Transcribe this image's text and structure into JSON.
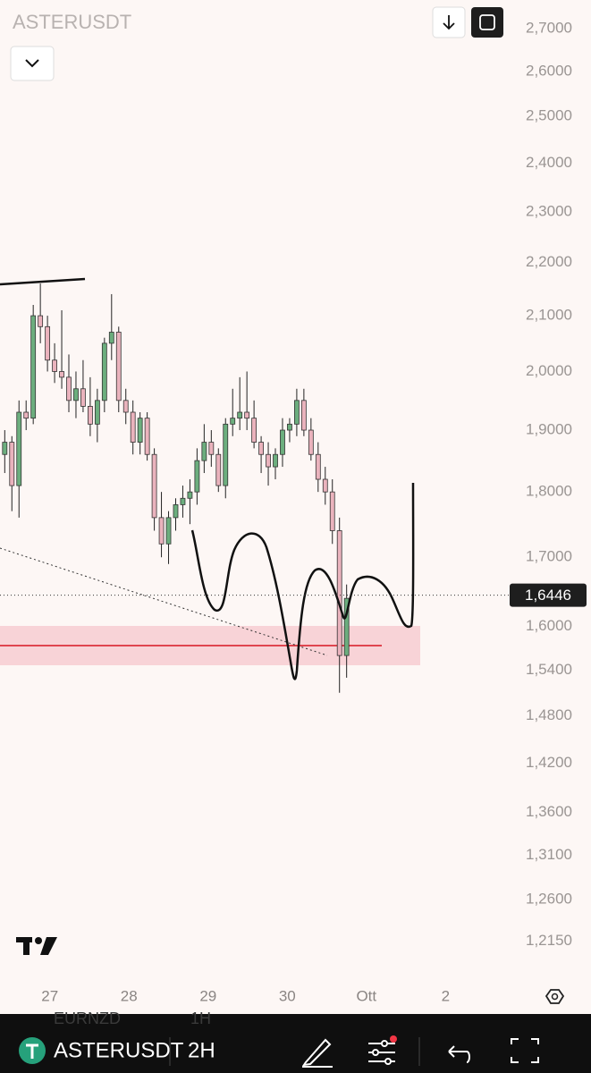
{
  "header": {
    "symbol": "ASTERUSDT"
  },
  "chart_data": {
    "type": "candlestick",
    "log_scale": true,
    "up_color": "#6cae7e",
    "down_color": "#eab3bd",
    "x": [
      26.43,
      26.52,
      26.61,
      26.7,
      26.79,
      26.88,
      26.97,
      27.06,
      27.15,
      27.24,
      27.33,
      27.42,
      27.51,
      27.6,
      27.69,
      27.78,
      27.87,
      27.96,
      28.05,
      28.14,
      28.23,
      28.32,
      28.41,
      28.5,
      28.59,
      28.68,
      28.77,
      28.86,
      28.95,
      29.04,
      29.13,
      29.22,
      29.31,
      29.4,
      29.49,
      29.58,
      29.67,
      29.76,
      29.85,
      29.94,
      30.03,
      30.12,
      30.21,
      30.3,
      30.39,
      30.48,
      30.57,
      30.66,
      30.75
    ],
    "open": [
      1.86,
      1.88,
      1.81,
      1.93,
      1.92,
      2.1,
      2.08,
      2.02,
      2.0,
      1.99,
      1.95,
      1.97,
      1.94,
      1.91,
      1.95,
      2.05,
      2.07,
      1.95,
      1.93,
      1.88,
      1.92,
      1.86,
      1.76,
      1.72,
      1.76,
      1.78,
      1.79,
      1.8,
      1.85,
      1.88,
      1.86,
      1.81,
      1.91,
      1.92,
      1.93,
      1.92,
      1.88,
      1.86,
      1.84,
      1.86,
      1.9,
      1.91,
      1.95,
      1.9,
      1.86,
      1.82,
      1.8,
      1.74,
      1.56
    ],
    "high": [
      1.9,
      1.89,
      1.95,
      1.95,
      2.12,
      2.16,
      2.1,
      2.05,
      2.11,
      2.03,
      2.0,
      2.02,
      1.99,
      1.97,
      2.06,
      2.14,
      2.08,
      1.97,
      1.95,
      1.93,
      1.93,
      1.87,
      1.8,
      1.77,
      1.79,
      1.81,
      1.82,
      1.87,
      1.91,
      1.9,
      1.87,
      1.92,
      1.97,
      1.99,
      2.0,
      1.95,
      1.89,
      1.88,
      1.87,
      1.92,
      1.92,
      1.97,
      1.97,
      1.92,
      1.88,
      1.84,
      1.82,
      1.76,
      1.66
    ],
    "low": [
      1.83,
      1.77,
      1.76,
      1.9,
      1.91,
      2.05,
      2.0,
      1.98,
      1.97,
      1.93,
      1.92,
      1.93,
      1.89,
      1.88,
      1.93,
      2.02,
      1.93,
      1.91,
      1.86,
      1.86,
      1.85,
      1.74,
      1.7,
      1.69,
      1.74,
      1.76,
      1.75,
      1.78,
      1.83,
      1.84,
      1.8,
      1.79,
      1.89,
      1.9,
      1.9,
      1.87,
      1.83,
      1.81,
      1.82,
      1.84,
      1.88,
      1.89,
      1.89,
      1.85,
      1.8,
      1.78,
      1.72,
      1.51,
      1.53
    ],
    "close": [
      1.88,
      1.81,
      1.93,
      1.92,
      2.1,
      2.08,
      2.02,
      2.0,
      1.99,
      1.95,
      1.97,
      1.94,
      1.91,
      1.95,
      2.05,
      2.07,
      1.95,
      1.93,
      1.88,
      1.92,
      1.86,
      1.76,
      1.72,
      1.76,
      1.78,
      1.79,
      1.8,
      1.85,
      1.88,
      1.86,
      1.81,
      1.91,
      1.92,
      1.93,
      1.92,
      1.88,
      1.86,
      1.84,
      1.86,
      1.9,
      1.91,
      1.95,
      1.9,
      1.86,
      1.82,
      1.8,
      1.74,
      1.56,
      1.64
    ],
    "xlim": [
      26.37,
      32.81
    ],
    "xticks": [
      27,
      28,
      29,
      30,
      {
        "value": 31,
        "label": "Ott"
      },
      {
        "value": 32,
        "label": "2"
      }
    ],
    "ylim": [
      1.18,
      2.768
    ],
    "yticks": [
      {
        "value": 2.7,
        "label": "2,7000"
      },
      {
        "value": 2.6,
        "label": "2,6000"
      },
      {
        "value": 2.5,
        "label": "2,5000"
      },
      {
        "value": 2.4,
        "label": "2,4000"
      },
      {
        "value": 2.3,
        "label": "2,3000"
      },
      {
        "value": 2.2,
        "label": "2,2000"
      },
      {
        "value": 2.1,
        "label": "2,1000"
      },
      {
        "value": 2.0,
        "label": "2,0000"
      },
      {
        "value": 1.9,
        "label": "1,9000"
      },
      {
        "value": 1.8,
        "label": "1,8000"
      },
      {
        "value": 1.7,
        "label": "1,7000"
      },
      {
        "value": 1.6,
        "label": "1,6000"
      },
      {
        "value": 1.54,
        "label": "1,5400"
      },
      {
        "value": 1.48,
        "label": "1,4800"
      },
      {
        "value": 1.42,
        "label": "1,4200"
      },
      {
        "value": 1.36,
        "label": "1,3600"
      },
      {
        "value": 1.31,
        "label": "1,3100"
      },
      {
        "value": 1.26,
        "label": "1,2600"
      },
      {
        "value": 1.215,
        "label": "1,2150"
      }
    ],
    "last_price": {
      "value": 1.6446,
      "label": "1,6446"
    }
  },
  "toolbar": {
    "symbol": "ASTERUSDT",
    "interval": "2H",
    "ghost_symbol": "EURNZD",
    "ghost_interval": "1H"
  }
}
